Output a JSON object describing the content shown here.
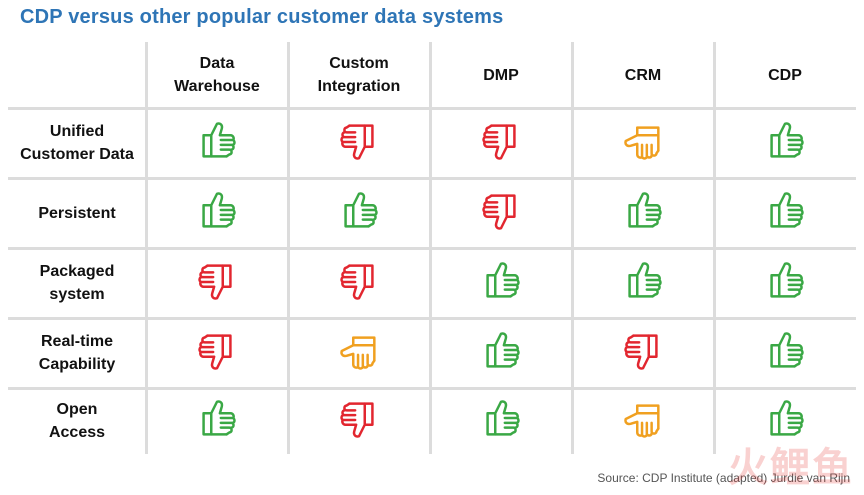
{
  "title": "CDP versus other popular customer data systems",
  "columns": [
    "Data\nWarehouse",
    "Custom\nIntegration",
    "DMP",
    "CRM",
    "CDP"
  ],
  "rows": [
    {
      "label": "Unified\nCustomer Data",
      "ratings": [
        "up",
        "down",
        "down",
        "neutral",
        "up"
      ]
    },
    {
      "label": "Persistent",
      "ratings": [
        "up",
        "up",
        "down",
        "up",
        "up"
      ]
    },
    {
      "label": "Packaged\nsystem",
      "ratings": [
        "down",
        "down",
        "up",
        "up",
        "up"
      ]
    },
    {
      "label": "Real-time\nCapability",
      "ratings": [
        "down",
        "neutral",
        "up",
        "down",
        "up"
      ]
    },
    {
      "label": "Open\nAccess",
      "ratings": [
        "up",
        "down",
        "up",
        "neutral",
        "up"
      ]
    }
  ],
  "rating_colors": {
    "up": "#3aa845",
    "down": "#e2262f",
    "neutral": "#f0a020"
  },
  "rating_icons": {
    "up": "thumbs-up-icon",
    "down": "thumbs-down-icon",
    "neutral": "thumbs-sideways-icon"
  },
  "source": "Source: CDP Institute (adapted) Jurdie van Rijn",
  "watermark": "火鲤鱼"
}
